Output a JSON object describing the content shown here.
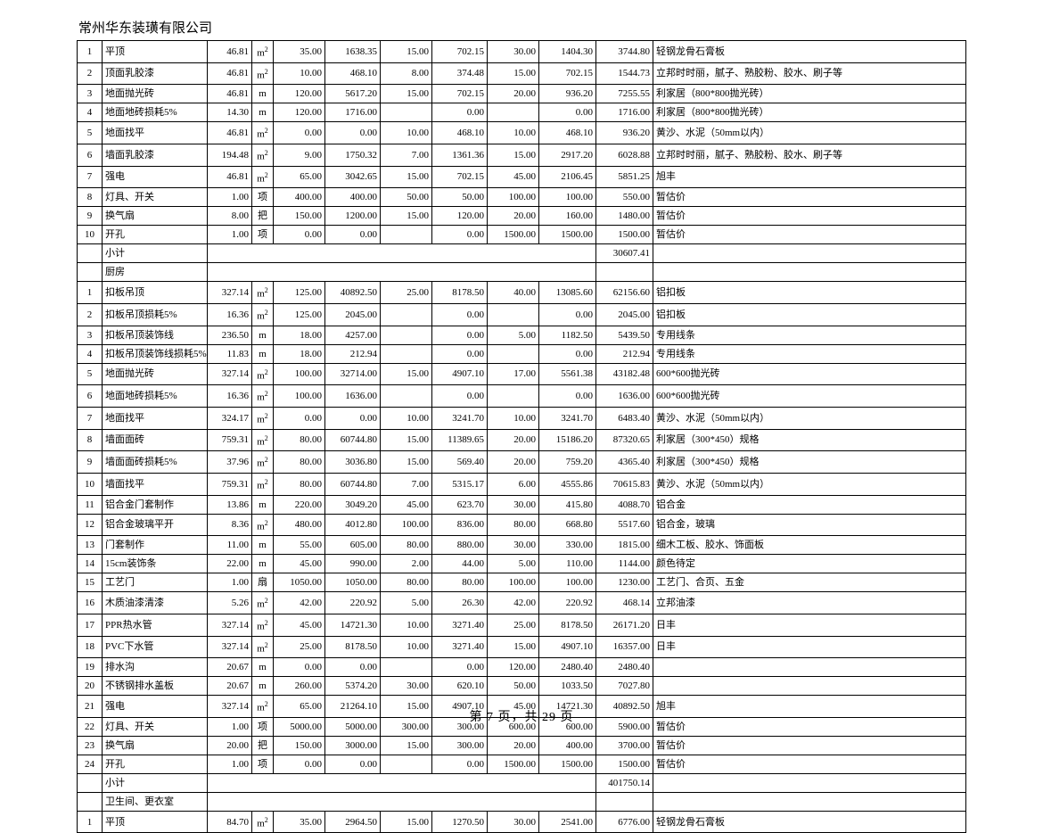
{
  "header": {
    "company": "常州华东装璜有限公司"
  },
  "footer": {
    "text": "第 7 页，共 29 页"
  },
  "units": {
    "m2": "㎡",
    "m": "m",
    "xiang": "项",
    "ba": "把",
    "shan": "扇"
  },
  "rows": [
    {
      "t": "d",
      "i": "1",
      "name": "平顶",
      "qty": "46.81",
      "u": "m2",
      "a": "35.00",
      "b": "1638.35",
      "c": "15.00",
      "d": "702.15",
      "e": "30.00",
      "f": "1404.30",
      "g": "3744.80",
      "note": "轻钢龙骨石膏板"
    },
    {
      "t": "d",
      "i": "2",
      "name": "顶面乳胶漆",
      "qty": "46.81",
      "u": "m2",
      "a": "10.00",
      "b": "468.10",
      "c": "8.00",
      "d": "374.48",
      "e": "15.00",
      "f": "702.15",
      "g": "1544.73",
      "note": "立邦时时丽，腻子、熟胶粉、胶水、刷子等"
    },
    {
      "t": "d",
      "i": "3",
      "name": "地面抛光砖",
      "qty": "46.81",
      "u": "m",
      "a": "120.00",
      "b": "5617.20",
      "c": "15.00",
      "d": "702.15",
      "e": "20.00",
      "f": "936.20",
      "g": "7255.55",
      "note": "利家居（800*800抛光砖）"
    },
    {
      "t": "d",
      "i": "4",
      "name": "地面地砖损耗5%",
      "qty": "14.30",
      "u": "m",
      "a": "120.00",
      "b": "1716.00",
      "c": "",
      "d": "0.00",
      "e": "",
      "f": "0.00",
      "g": "1716.00",
      "note": "利家居（800*800抛光砖）"
    },
    {
      "t": "d",
      "i": "5",
      "name": "地面找平",
      "qty": "46.81",
      "u": "m2",
      "a": "0.00",
      "b": "0.00",
      "c": "10.00",
      "d": "468.10",
      "e": "10.00",
      "f": "468.10",
      "g": "936.20",
      "note": "黄沙、水泥（50mm以内）"
    },
    {
      "t": "d",
      "i": "6",
      "name": "墙面乳胶漆",
      "qty": "194.48",
      "u": "m2",
      "a": "9.00",
      "b": "1750.32",
      "c": "7.00",
      "d": "1361.36",
      "e": "15.00",
      "f": "2917.20",
      "g": "6028.88",
      "note": "立邦时时丽，腻子、熟胶粉、胶水、刷子等"
    },
    {
      "t": "d",
      "i": "7",
      "name": "强电",
      "qty": "46.81",
      "u": "m2",
      "a": "65.00",
      "b": "3042.65",
      "c": "15.00",
      "d": "702.15",
      "e": "45.00",
      "f": "2106.45",
      "g": "5851.25",
      "note": "旭丰"
    },
    {
      "t": "d",
      "i": "8",
      "name": "灯具、开关",
      "qty": "1.00",
      "u": "xiang",
      "a": "400.00",
      "b": "400.00",
      "c": "50.00",
      "d": "50.00",
      "e": "100.00",
      "f": "100.00",
      "g": "550.00",
      "note": "暂估价"
    },
    {
      "t": "d",
      "i": "9",
      "name": "换气扇",
      "qty": "8.00",
      "u": "ba",
      "a": "150.00",
      "b": "1200.00",
      "c": "15.00",
      "d": "120.00",
      "e": "20.00",
      "f": "160.00",
      "g": "1480.00",
      "note": "暂估价"
    },
    {
      "t": "d",
      "i": "10",
      "name": "开孔",
      "qty": "1.00",
      "u": "xiang",
      "a": "0.00",
      "b": "0.00",
      "c": "",
      "d": "0.00",
      "e": "1500.00",
      "f": "1500.00",
      "g": "1500.00",
      "note": "暂估价"
    },
    {
      "t": "sub",
      "name": "小计",
      "g": "30607.41"
    },
    {
      "t": "sec",
      "name": "厨房"
    },
    {
      "t": "d",
      "i": "1",
      "name": "扣板吊顶",
      "qty": "327.14",
      "u": "m2",
      "a": "125.00",
      "b": "40892.50",
      "c": "25.00",
      "d": "8178.50",
      "e": "40.00",
      "f": "13085.60",
      "g": "62156.60",
      "note": "铝扣板"
    },
    {
      "t": "d",
      "i": "2",
      "name": "扣板吊顶损耗5%",
      "qty": "16.36",
      "u": "m2",
      "a": "125.00",
      "b": "2045.00",
      "c": "",
      "d": "0.00",
      "e": "",
      "f": "0.00",
      "g": "2045.00",
      "note": "铝扣板"
    },
    {
      "t": "d",
      "i": "3",
      "name": "扣板吊顶装饰线",
      "qty": "236.50",
      "u": "m",
      "a": "18.00",
      "b": "4257.00",
      "c": "",
      "d": "0.00",
      "e": "5.00",
      "f": "1182.50",
      "g": "5439.50",
      "note": "专用线条"
    },
    {
      "t": "d",
      "i": "4",
      "name": "扣板吊顶装饰线损耗5%",
      "qty": "11.83",
      "u": "m",
      "a": "18.00",
      "b": "212.94",
      "c": "",
      "d": "0.00",
      "e": "",
      "f": "0.00",
      "g": "212.94",
      "note": "专用线条"
    },
    {
      "t": "d",
      "i": "5",
      "name": "地面抛光砖",
      "qty": "327.14",
      "u": "m2",
      "a": "100.00",
      "b": "32714.00",
      "c": "15.00",
      "d": "4907.10",
      "e": "17.00",
      "f": "5561.38",
      "g": "43182.48",
      "note": "600*600抛光砖"
    },
    {
      "t": "d",
      "i": "6",
      "name": "地面地砖损耗5%",
      "qty": "16.36",
      "u": "m2",
      "a": "100.00",
      "b": "1636.00",
      "c": "",
      "d": "0.00",
      "e": "",
      "f": "0.00",
      "g": "1636.00",
      "note": "600*600抛光砖"
    },
    {
      "t": "d",
      "i": "7",
      "name": "地面找平",
      "qty": "324.17",
      "u": "m2",
      "a": "0.00",
      "b": "0.00",
      "c": "10.00",
      "d": "3241.70",
      "e": "10.00",
      "f": "3241.70",
      "g": "6483.40",
      "note": "黄沙、水泥（50mm以内）"
    },
    {
      "t": "d",
      "i": "8",
      "name": "墙面面砖",
      "qty": "759.31",
      "u": "m2",
      "a": "80.00",
      "b": "60744.80",
      "c": "15.00",
      "d": "11389.65",
      "e": "20.00",
      "f": "15186.20",
      "g": "87320.65",
      "note": "利家居（300*450）规格"
    },
    {
      "t": "d",
      "i": "9",
      "name": "墙面面砖损耗5%",
      "qty": "37.96",
      "u": "m2",
      "a": "80.00",
      "b": "3036.80",
      "c": "15.00",
      "d": "569.40",
      "e": "20.00",
      "f": "759.20",
      "g": "4365.40",
      "note": "利家居（300*450）规格"
    },
    {
      "t": "d",
      "i": "10",
      "name": "墙面找平",
      "qty": "759.31",
      "u": "m2",
      "a": "80.00",
      "b": "60744.80",
      "c": "7.00",
      "d": "5315.17",
      "e": "6.00",
      "f": "4555.86",
      "g": "70615.83",
      "note": "黄沙、水泥（50mm以内）"
    },
    {
      "t": "d",
      "i": "11",
      "name": "铝合金门套制作",
      "qty": "13.86",
      "u": "m",
      "a": "220.00",
      "b": "3049.20",
      "c": "45.00",
      "d": "623.70",
      "e": "30.00",
      "f": "415.80",
      "g": "4088.70",
      "note": "铝合金"
    },
    {
      "t": "d",
      "i": "12",
      "name": "铝合金玻璃平开",
      "qty": "8.36",
      "u": "m2",
      "a": "480.00",
      "b": "4012.80",
      "c": "100.00",
      "d": "836.00",
      "e": "80.00",
      "f": "668.80",
      "g": "5517.60",
      "note": "铝合金，玻璃"
    },
    {
      "t": "d",
      "i": "13",
      "name": "门套制作",
      "qty": "11.00",
      "u": "m",
      "a": "55.00",
      "b": "605.00",
      "c": "80.00",
      "d": "880.00",
      "e": "30.00",
      "f": "330.00",
      "g": "1815.00",
      "note": "细木工板、胶水、饰面板"
    },
    {
      "t": "d",
      "i": "14",
      "name": "15cm装饰条",
      "qty": "22.00",
      "u": "m",
      "a": "45.00",
      "b": "990.00",
      "c": "2.00",
      "d": "44.00",
      "e": "5.00",
      "f": "110.00",
      "g": "1144.00",
      "note": "颜色待定"
    },
    {
      "t": "d",
      "i": "15",
      "name": "工艺门",
      "qty": "1.00",
      "u": "shan",
      "a": "1050.00",
      "b": "1050.00",
      "c": "80.00",
      "d": "80.00",
      "e": "100.00",
      "f": "100.00",
      "g": "1230.00",
      "note": "工艺门、合页、五金"
    },
    {
      "t": "d",
      "i": "16",
      "name": "木质油漆清漆",
      "qty": "5.26",
      "u": "m2",
      "a": "42.00",
      "b": "220.92",
      "c": "5.00",
      "d": "26.30",
      "e": "42.00",
      "f": "220.92",
      "g": "468.14",
      "note": "立邦油漆"
    },
    {
      "t": "d",
      "i": "17",
      "name": "PPR热水管",
      "qty": "327.14",
      "u": "m2",
      "a": "45.00",
      "b": "14721.30",
      "c": "10.00",
      "d": "3271.40",
      "e": "25.00",
      "f": "8178.50",
      "g": "26171.20",
      "note": "日丰"
    },
    {
      "t": "d",
      "i": "18",
      "name": "PVC下水管",
      "qty": "327.14",
      "u": "m2",
      "a": "25.00",
      "b": "8178.50",
      "c": "10.00",
      "d": "3271.40",
      "e": "15.00",
      "f": "4907.10",
      "g": "16357.00",
      "note": "日丰"
    },
    {
      "t": "d",
      "i": "19",
      "name": "排水沟",
      "qty": "20.67",
      "u": "m",
      "a": "0.00",
      "b": "0.00",
      "c": "",
      "d": "0.00",
      "e": "120.00",
      "f": "2480.40",
      "g": "2480.40",
      "note": ""
    },
    {
      "t": "d",
      "i": "20",
      "name": "不锈钢排水盖板",
      "qty": "20.67",
      "u": "m",
      "a": "260.00",
      "b": "5374.20",
      "c": "30.00",
      "d": "620.10",
      "e": "50.00",
      "f": "1033.50",
      "g": "7027.80",
      "note": ""
    },
    {
      "t": "d",
      "i": "21",
      "name": "强电",
      "qty": "327.14",
      "u": "m2",
      "a": "65.00",
      "b": "21264.10",
      "c": "15.00",
      "d": "4907.10",
      "e": "45.00",
      "f": "14721.30",
      "g": "40892.50",
      "note": "旭丰"
    },
    {
      "t": "d",
      "i": "22",
      "name": "灯具、开关",
      "qty": "1.00",
      "u": "xiang",
      "a": "5000.00",
      "b": "5000.00",
      "c": "300.00",
      "d": "300.00",
      "e": "600.00",
      "f": "600.00",
      "g": "5900.00",
      "note": "暂估价"
    },
    {
      "t": "d",
      "i": "23",
      "name": "换气扇",
      "qty": "20.00",
      "u": "ba",
      "a": "150.00",
      "b": "3000.00",
      "c": "15.00",
      "d": "300.00",
      "e": "20.00",
      "f": "400.00",
      "g": "3700.00",
      "note": "暂估价"
    },
    {
      "t": "d",
      "i": "24",
      "name": "开孔",
      "qty": "1.00",
      "u": "xiang",
      "a": "0.00",
      "b": "0.00",
      "c": "",
      "d": "0.00",
      "e": "1500.00",
      "f": "1500.00",
      "g": "1500.00",
      "note": "暂估价"
    },
    {
      "t": "sub",
      "name": "小计",
      "g": "401750.14"
    },
    {
      "t": "sec",
      "name": "卫生间、更衣室"
    },
    {
      "t": "d",
      "i": "1",
      "name": "平顶",
      "qty": "84.70",
      "u": "m2",
      "a": "35.00",
      "b": "2964.50",
      "c": "15.00",
      "d": "1270.50",
      "e": "30.00",
      "f": "2541.00",
      "g": "6776.00",
      "note": "轻钢龙骨石膏板"
    }
  ]
}
